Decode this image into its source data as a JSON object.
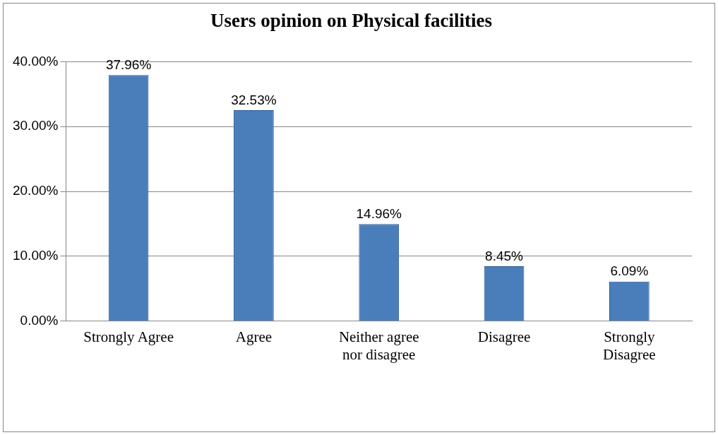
{
  "chart_data": {
    "type": "bar",
    "title": "Users opinion on Physical facilities",
    "categories": [
      "Strongly Agree",
      "Agree",
      "Neither agree nor disagree",
      "Disagree",
      "Strongly Disagree"
    ],
    "values": [
      37.96,
      32.53,
      14.96,
      8.45,
      6.09
    ],
    "value_labels": [
      "37.96%",
      "32.53%",
      "14.96%",
      "8.45%",
      "6.09%"
    ],
    "color": "#4a7ebb",
    "ylim": [
      0,
      40
    ],
    "yticks": [
      {
        "value": 0,
        "label": "0.00%"
      },
      {
        "value": 10,
        "label": "10.00%"
      },
      {
        "value": 20,
        "label": "20.00%"
      },
      {
        "value": 30,
        "label": "30.00%"
      },
      {
        "value": 40,
        "label": "40.00%"
      }
    ],
    "grid": "y",
    "legend": false
  }
}
